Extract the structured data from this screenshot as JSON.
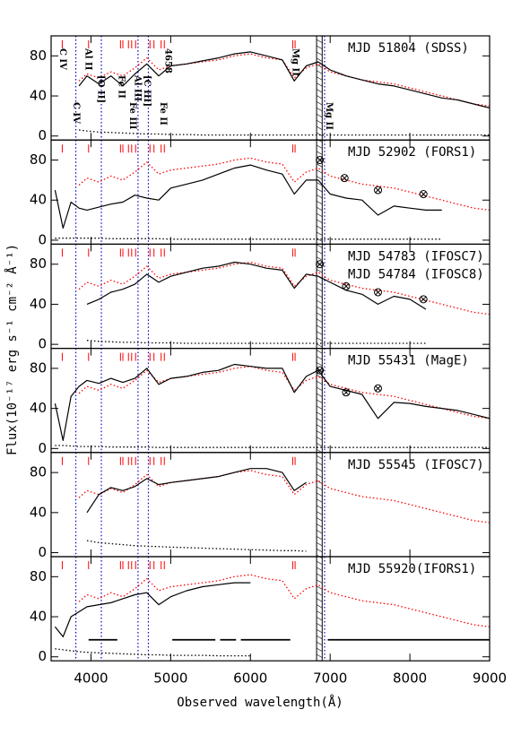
{
  "chart_data": {
    "type": "line",
    "x_label": "Observed wavelength(Å)",
    "y_label": "Flux(10⁻¹⁷ erg s⁻¹ cm⁻² Å⁻¹)",
    "xlim": [
      3500,
      9000
    ],
    "xticks": [
      4000,
      5000,
      6000,
      7000,
      8000,
      9000
    ],
    "ylim": [
      -4,
      100
    ],
    "yticks": [
      0,
      40,
      80
    ],
    "x": [
      3550,
      3650,
      3750,
      3850,
      3950,
      4100,
      4250,
      4400,
      4550,
      4700,
      4850,
      5000,
      5200,
      5400,
      5600,
      5800,
      6000,
      6200,
      6400,
      6550,
      6700,
      6850,
      7000,
      7200,
      7400,
      7600,
      7800,
      8000,
      8200,
      8400,
      8600,
      8800,
      9000
    ],
    "reference": {
      "color": "#ff0000",
      "values": [
        null,
        null,
        null,
        55,
        62,
        58,
        64,
        60,
        68,
        78,
        66,
        70,
        72,
        74,
        76,
        80,
        82,
        78,
        76,
        58,
        68,
        72,
        64,
        60,
        56,
        54,
        52,
        48,
        44,
        40,
        36,
        32,
        30
      ]
    },
    "vlines": {
      "color": "#0000cc",
      "x": [
        3810,
        4130,
        4590,
        4720,
        6930
      ]
    },
    "hatch_band": [
      6830,
      6900
    ],
    "line_markers": {
      "color": "#ff0000",
      "x": [
        3640,
        3970,
        4370,
        4400,
        4470,
        4510,
        4560,
        4740,
        4790,
        4880,
        4920,
        6530,
        6560
      ]
    },
    "line_labels": [
      {
        "text": "C IV",
        "x": 3640
      },
      {
        "text": "C IV",
        "x": 3810
      },
      {
        "text": "Al II",
        "x": 3960
      },
      {
        "text": "[O II]",
        "x": 4120
      },
      {
        "text": "Fe II",
        "x": 4380
      },
      {
        "text": "Fe III",
        "x": 4520
      },
      {
        "text": "Al III",
        "x": 4580
      },
      {
        "text": "[C III]",
        "x": 4700
      },
      {
        "text": "Fe II",
        "x": 4900
      },
      {
        "text": "4658",
        "x": 4960
      },
      {
        "text": "Mg II",
        "x": 6560
      },
      {
        "text": "Mg II",
        "x": 6980
      }
    ],
    "panels": [
      {
        "labels": [
          "MJD 51804 (SDSS)"
        ],
        "series": [
          {
            "color": "#000000",
            "values": [
              null,
              null,
              null,
              50,
              60,
              52,
              60,
              50,
              62,
              72,
              60,
              70,
              72,
              75,
              78,
              82,
              84,
              80,
              76,
              55,
              70,
              74,
              66,
              60,
              56,
              52,
              50,
              46,
              42,
              38,
              36,
              32,
              28
            ]
          },
          {
            "color": "#000000",
            "style": "dotted",
            "values": [
              null,
              null,
              null,
              6,
              5,
              4,
              3.5,
              3,
              2.5,
              2,
              2,
              1.5,
              1.5,
              1,
              1,
              1,
              1,
              1,
              1,
              1,
              1,
              1,
              1,
              1,
              1,
              1,
              1,
              1,
              1,
              1,
              1,
              1,
              1
            ]
          }
        ]
      },
      {
        "labels": [
          "MJD 52902 (FORS1)"
        ],
        "series": [
          {
            "color": "#000000",
            "values": [
              50,
              12,
              38,
              32,
              30,
              33,
              36,
              38,
              45,
              42,
              40,
              52,
              56,
              60,
              66,
              72,
              75,
              70,
              66,
              46,
              60,
              60,
              46,
              42,
              40,
              25,
              34,
              32,
              30,
              30,
              null,
              null,
              null
            ]
          },
          {
            "color": "#000000",
            "style": "dotted",
            "values": [
              2,
              2,
              2,
              2,
              2,
              2,
              1.5,
              1.5,
              1.5,
              1.5,
              1.5,
              1,
              1,
              1,
              1,
              1,
              1,
              1,
              1,
              1,
              1,
              1,
              1,
              1,
              1,
              1,
              1,
              1,
              1,
              1,
              null,
              null,
              null
            ]
          }
        ],
        "telluric": {
          "x": [
            6870,
            7180,
            7600,
            8170
          ],
          "y": [
            80,
            62,
            50,
            46
          ]
        }
      },
      {
        "labels": [
          "MJD 54783 (IFOSC7)",
          "MJD 54784 (IFOSC8)"
        ],
        "series": [
          {
            "color": "#000000",
            "values": [
              null,
              null,
              null,
              null,
              40,
              45,
              52,
              55,
              60,
              70,
              62,
              68,
              72,
              76,
              78,
              82,
              80,
              76,
              74,
              56,
              70,
              68,
              62,
              54,
              50,
              40,
              48,
              45,
              35,
              null,
              null,
              null,
              null
            ]
          },
          {
            "color": "#000000",
            "style": "dotted",
            "values": [
              null,
              null,
              null,
              null,
              4,
              3,
              2.5,
              2,
              2,
              1.5,
              1.5,
              1.5,
              1,
              1,
              1,
              1,
              1,
              1,
              1,
              1,
              1,
              1,
              1,
              1,
              1,
              1,
              1,
              1,
              1,
              null,
              null,
              null,
              null
            ]
          }
        ],
        "telluric": {
          "x": [
            6870,
            7200,
            7600,
            8170
          ],
          "y": [
            80,
            58,
            52,
            45
          ]
        }
      },
      {
        "labels": [
          "MJD 55431 (MagE)"
        ],
        "series": [
          {
            "color": "#000000",
            "values": [
              45,
              8,
              52,
              62,
              68,
              65,
              70,
              66,
              70,
              80,
              64,
              70,
              72,
              76,
              78,
              84,
              82,
              80,
              80,
              56,
              72,
              78,
              62,
              58,
              54,
              30,
              46,
              45,
              42,
              40,
              38,
              34,
              30
            ]
          },
          {
            "color": "#000000",
            "style": "dotted",
            "values": [
              3,
              3,
              2.5,
              2,
              2,
              2,
              1.5,
              1.5,
              1.5,
              1.5,
              1,
              1,
              1,
              1,
              1,
              1,
              1,
              1,
              1,
              1,
              1,
              1,
              1,
              1,
              1,
              1,
              1,
              1,
              1,
              1,
              1,
              1,
              1
            ]
          }
        ],
        "telluric": {
          "x": [
            6870,
            7200,
            7600
          ],
          "y": [
            78,
            56,
            60
          ]
        }
      },
      {
        "labels": [
          "MJD 55545 (IFOSC7)"
        ],
        "series": [
          {
            "color": "#000000",
            "values": [
              null,
              null,
              null,
              null,
              40,
              58,
              65,
              62,
              66,
              74,
              68,
              70,
              72,
              74,
              76,
              80,
              84,
              84,
              80,
              62,
              70,
              null,
              null,
              null,
              null,
              null,
              null,
              null,
              null,
              null,
              null,
              null,
              null
            ]
          },
          {
            "color": "#000000",
            "style": "dotted",
            "values": [
              null,
              null,
              null,
              null,
              12,
              10,
              9,
              8,
              7,
              6.5,
              6,
              5.5,
              5,
              4.5,
              4,
              3.5,
              3,
              2.5,
              2,
              2,
              1.5,
              null,
              null,
              null,
              null,
              null,
              null,
              null,
              null,
              null,
              null,
              null,
              null
            ]
          }
        ]
      },
      {
        "labels": [
          "MJD 55920(IFORS1)"
        ],
        "series": [
          {
            "color": "#000000",
            "values": [
              30,
              20,
              40,
              45,
              50,
              52,
              54,
              58,
              62,
              64,
              52,
              60,
              66,
              70,
              72,
              74,
              74,
              null,
              null,
              null,
              null,
              null,
              null,
              null,
              null,
              null,
              null,
              null,
              null,
              null,
              null,
              null,
              null
            ]
          },
          {
            "color": "#000000",
            "style": "dotted",
            "values": [
              8,
              7,
              6,
              5,
              4.5,
              4,
              3.5,
              3,
              2.5,
              2,
              2,
              1.5,
              1.5,
              1.5,
              1,
              1,
              1,
              null,
              null,
              null,
              null,
              null,
              null,
              null,
              null,
              null,
              null,
              null,
              null,
              null,
              null,
              null,
              null
            ]
          }
        ],
        "segments": {
          "y": 17,
          "ranges": [
            [
              3970,
              4330
            ],
            [
              5020,
              5560
            ],
            [
              5620,
              5820
            ],
            [
              5880,
              6500
            ],
            [
              6970,
              9000
            ]
          ]
        }
      }
    ]
  }
}
